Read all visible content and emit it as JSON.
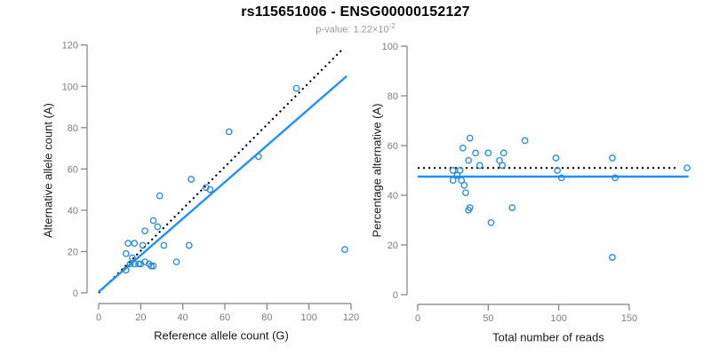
{
  "header": {
    "title": "rs115651006 - ENSG00000152127",
    "pvalue_label": "p-value: 1.22×10",
    "pvalue_exponent": "-2"
  },
  "colors": {
    "point": "#2389db",
    "fit_line": "#1E90FF",
    "expected_line": "#000000",
    "axis": "#808080",
    "tick_text": "#7d7d7d",
    "title": "#000000",
    "subtitle": "#9a9a9a"
  },
  "chart_data": [
    {
      "type": "scatter",
      "panel": "allele-counts",
      "xlabel": "Reference allele count (G)",
      "ylabel": "Alternative allele count (A)",
      "xlim": [
        0,
        120
      ],
      "ylim": [
        0,
        120
      ],
      "xticks": [
        0,
        20,
        40,
        60,
        80,
        100,
        120
      ],
      "yticks": [
        0,
        20,
        40,
        60,
        80,
        100,
        120
      ],
      "grid": false,
      "marker": "open-circle",
      "points": [
        [
          94,
          99
        ],
        [
          62,
          78
        ],
        [
          76,
          66
        ],
        [
          44,
          55
        ],
        [
          51,
          51
        ],
        [
          53,
          50
        ],
        [
          29,
          47
        ],
        [
          26,
          35
        ],
        [
          28,
          32
        ],
        [
          22,
          30
        ],
        [
          14,
          24
        ],
        [
          17,
          24
        ],
        [
          21,
          23
        ],
        [
          31,
          23
        ],
        [
          43,
          23
        ],
        [
          13,
          19
        ],
        [
          16,
          17
        ],
        [
          37,
          15
        ],
        [
          15,
          14
        ],
        [
          17,
          14
        ],
        [
          19,
          14
        ],
        [
          20,
          14
        ],
        [
          22,
          15
        ],
        [
          24,
          14
        ],
        [
          25,
          13
        ],
        [
          26,
          13
        ],
        [
          13,
          11
        ],
        [
          117,
          21
        ]
      ],
      "lines": [
        {
          "name": "expected-ratio-line",
          "style": "dotted",
          "color": "#000000",
          "width": 2,
          "points": [
            [
              0,
              0
            ],
            [
              116,
              118
            ]
          ]
        },
        {
          "name": "regression-line",
          "style": "solid",
          "color": "#1E90FF",
          "width": 2.4,
          "points": [
            [
              0,
              0.5
            ],
            [
              118,
              105
            ]
          ]
        }
      ]
    },
    {
      "type": "scatter",
      "panel": "percentage-vs-coverage",
      "xlabel": "Total number of reads",
      "ylabel": "Percentage alternative (A)",
      "xlim": [
        0,
        150
      ],
      "x_data_max": 193,
      "ylim": [
        0,
        100
      ],
      "xticks": [
        0,
        50,
        100,
        150
      ],
      "yticks": [
        0,
        20,
        40,
        60,
        80,
        100
      ],
      "grid": false,
      "marker": "open-circle",
      "points": [
        [
          37,
          63
        ],
        [
          32,
          59
        ],
        [
          41,
          57
        ],
        [
          50,
          57
        ],
        [
          61,
          57
        ],
        [
          76,
          62
        ],
        [
          58,
          54
        ],
        [
          60,
          52
        ],
        [
          44,
          52
        ],
        [
          98,
          55
        ],
        [
          138,
          55
        ],
        [
          99,
          50
        ],
        [
          102,
          47
        ],
        [
          140,
          47
        ],
        [
          191,
          51
        ],
        [
          36,
          54
        ],
        [
          30,
          50
        ],
        [
          25,
          50
        ],
        [
          28,
          48
        ],
        [
          25,
          46
        ],
        [
          31,
          46
        ],
        [
          33,
          44
        ],
        [
          34,
          41
        ],
        [
          37,
          35
        ],
        [
          36,
          34
        ],
        [
          67,
          35
        ],
        [
          52,
          29
        ],
        [
          138,
          15
        ]
      ],
      "lines": [
        {
          "name": "expected-ratio-line",
          "style": "dotted",
          "color": "#000000",
          "width": 2,
          "points": [
            [
              0,
              51
            ],
            [
              185,
              51
            ]
          ]
        },
        {
          "name": "regression-line",
          "style": "solid",
          "color": "#1E90FF",
          "width": 2.4,
          "points": [
            [
              0,
              47.5
            ],
            [
              192,
              47.5
            ]
          ]
        }
      ]
    }
  ]
}
